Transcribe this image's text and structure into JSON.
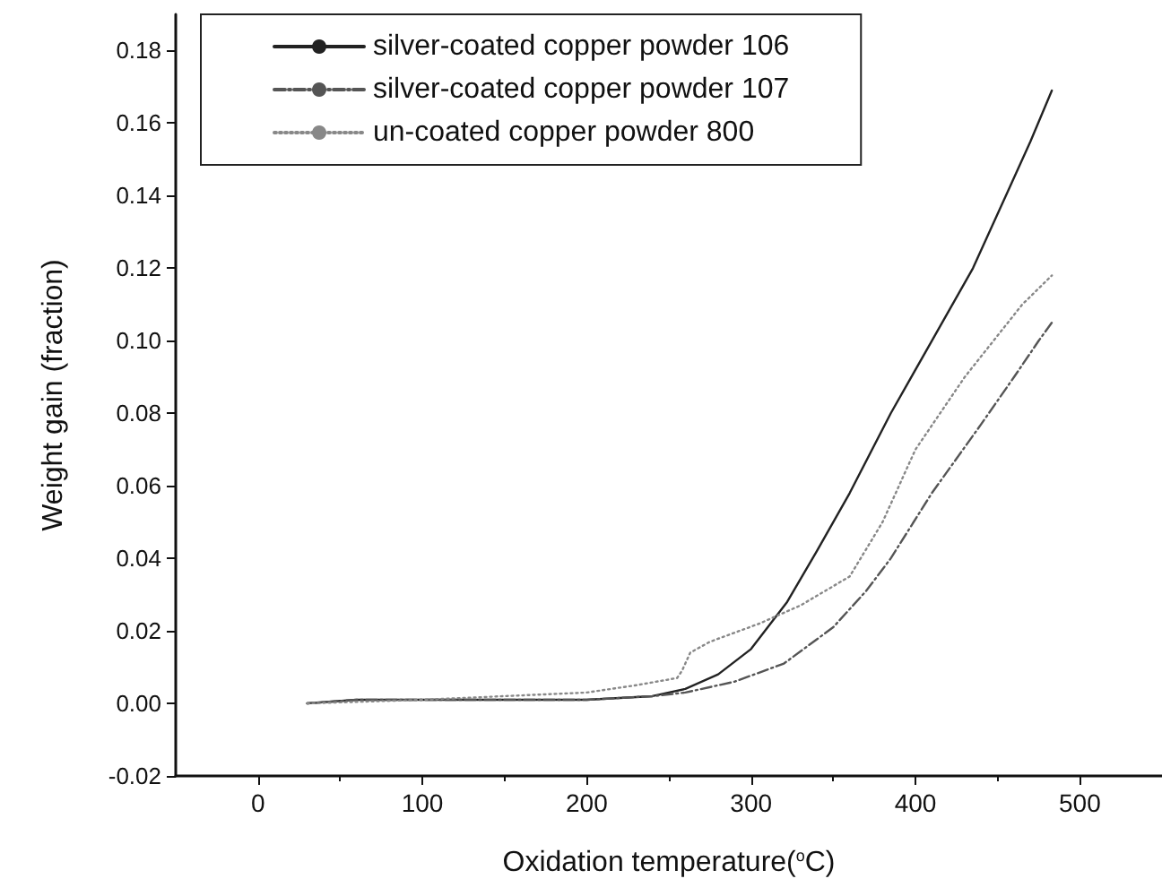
{
  "chart_data": {
    "type": "line",
    "xlabel": "Oxidation temperature($^{o}$C)",
    "ylabel": "Weight gain (fraction)",
    "xlim": [
      -50,
      550
    ],
    "xticks": [
      0,
      100,
      200,
      300,
      400,
      500
    ],
    "ylim": [
      -0.02,
      0.19
    ],
    "yticks": [
      -0.02,
      {
        "value": 0,
        "label": "0.00"
      },
      0.02,
      0.04,
      0.06,
      0.08,
      {
        "value": 0.1,
        "label": "0.10"
      },
      0.12,
      0.14,
      0.16,
      0.18
    ],
    "grid": false,
    "legend": "top left",
    "marker": "none",
    "series": [
      {
        "name": "silver-coated copper powder 106",
        "color": "#222222",
        "line_style": "solid",
        "x": [
          30,
          60,
          100,
          150,
          200,
          240,
          260,
          280,
          300,
          322,
          340,
          360,
          385,
          410,
          435,
          455,
          470,
          483
        ],
        "values": [
          0.0,
          0.001,
          0.001,
          0.001,
          0.001,
          0.002,
          0.004,
          0.008,
          0.015,
          0.028,
          0.042,
          0.058,
          0.08,
          0.1,
          0.12,
          0.14,
          0.155,
          0.169
        ]
      },
      {
        "name": "silver-coated copper powder 107",
        "color": "#555555",
        "line_style": "dashed",
        "x": [
          30,
          60,
          100,
          150,
          200,
          240,
          260,
          290,
          320,
          350,
          370,
          385,
          410,
          440,
          460,
          475,
          483
        ],
        "values": [
          0.0,
          0.001,
          0.001,
          0.001,
          0.001,
          0.002,
          0.003,
          0.006,
          0.011,
          0.021,
          0.031,
          0.04,
          0.058,
          0.077,
          0.09,
          0.1,
          0.105
        ]
      },
      {
        "name": "un-coated copper powder 800",
        "color": "#888888",
        "line_style": "dotted",
        "x": [
          30,
          100,
          150,
          200,
          230,
          255,
          258,
          263,
          275,
          305,
          330,
          360,
          380,
          400,
          430,
          465,
          483
        ],
        "values": [
          0.0,
          0.001,
          0.002,
          0.003,
          0.005,
          0.007,
          0.009,
          0.014,
          0.017,
          0.022,
          0.027,
          0.035,
          0.05,
          0.07,
          0.09,
          0.11,
          0.118
        ]
      }
    ]
  }
}
